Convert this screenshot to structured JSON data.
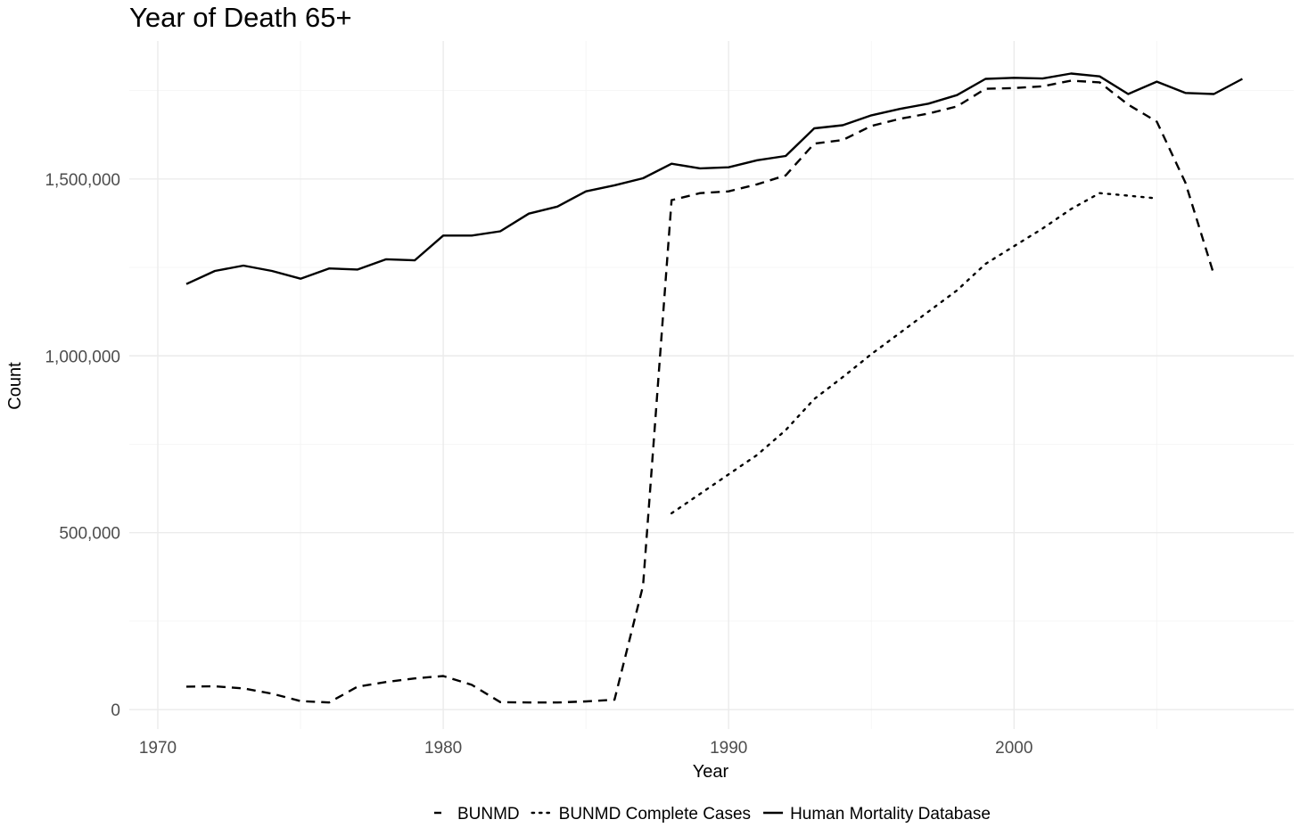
{
  "chart_data": {
    "type": "line",
    "title": "Year of Death 65+",
    "xlabel": "Year",
    "ylabel": "Count",
    "xlim": [
      1969,
      2009.8
    ],
    "ylim": [
      -55000,
      1890000
    ],
    "x_ticks": [
      1970,
      1980,
      1990,
      2000
    ],
    "x_tick_labels": [
      "1970",
      "1980",
      "1990",
      "2000"
    ],
    "y_ticks": [
      0,
      500000,
      1000000,
      1500000
    ],
    "y_tick_labels": [
      "0",
      "500,000",
      "1,000,000",
      "1,500,000"
    ],
    "grid": true,
    "legend_position": "bottom",
    "series": [
      {
        "name": "BUNMD",
        "dash": "dashed",
        "x": [
          1971,
          1972,
          1973,
          1974,
          1975,
          1976,
          1977,
          1978,
          1979,
          1980,
          1981,
          1982,
          1983,
          1984,
          1985,
          1986,
          1987,
          1988,
          1989,
          1990,
          1991,
          1992,
          1993,
          1994,
          1995,
          1996,
          1997,
          1998,
          1999,
          2000,
          2001,
          2002,
          2003,
          2004,
          2005,
          2006,
          2007
        ],
        "y": [
          65000,
          66000,
          60000,
          45000,
          24000,
          20000,
          65000,
          78000,
          88000,
          95000,
          70000,
          21000,
          20000,
          20000,
          23000,
          28000,
          350000,
          1440000,
          1460000,
          1465000,
          1485000,
          1510000,
          1600000,
          1610000,
          1650000,
          1670000,
          1685000,
          1705000,
          1755000,
          1757000,
          1762000,
          1778000,
          1773000,
          1710000,
          1662000,
          1490000,
          1230000
        ]
      },
      {
        "name": "BUNMD Complete Cases",
        "dash": "dotted",
        "x": [
          1988,
          1989,
          1990,
          1991,
          1992,
          1993,
          1994,
          1995,
          1996,
          1997,
          1998,
          1999,
          2000,
          2001,
          2002,
          2003,
          2004,
          2005
        ],
        "y": [
          555000,
          610000,
          665000,
          720000,
          790000,
          878000,
          940000,
          1005000,
          1065000,
          1125000,
          1185000,
          1260000,
          1310000,
          1360000,
          1415000,
          1460000,
          1453000,
          1445000
        ]
      },
      {
        "name": "Human Mortality Database",
        "dash": "solid",
        "x": [
          1971,
          1972,
          1973,
          1974,
          1975,
          1976,
          1977,
          1978,
          1979,
          1980,
          1981,
          1982,
          1983,
          1984,
          1985,
          1986,
          1987,
          1988,
          1989,
          1990,
          1991,
          1992,
          1993,
          1994,
          1995,
          1996,
          1997,
          1998,
          1999,
          2000,
          2001,
          2002,
          2003,
          2004,
          2005,
          2006,
          2007,
          2008
        ],
        "y": [
          1203000,
          1240000,
          1255000,
          1240000,
          1218000,
          1247000,
          1244000,
          1273000,
          1270000,
          1340000,
          1340000,
          1352000,
          1402000,
          1422000,
          1465000,
          1482000,
          1502000,
          1543000,
          1530000,
          1533000,
          1553000,
          1565000,
          1643000,
          1652000,
          1680000,
          1698000,
          1713000,
          1737000,
          1783000,
          1786000,
          1784000,
          1798000,
          1790000,
          1740000,
          1775000,
          1743000,
          1740000,
          1783000
        ]
      }
    ]
  }
}
